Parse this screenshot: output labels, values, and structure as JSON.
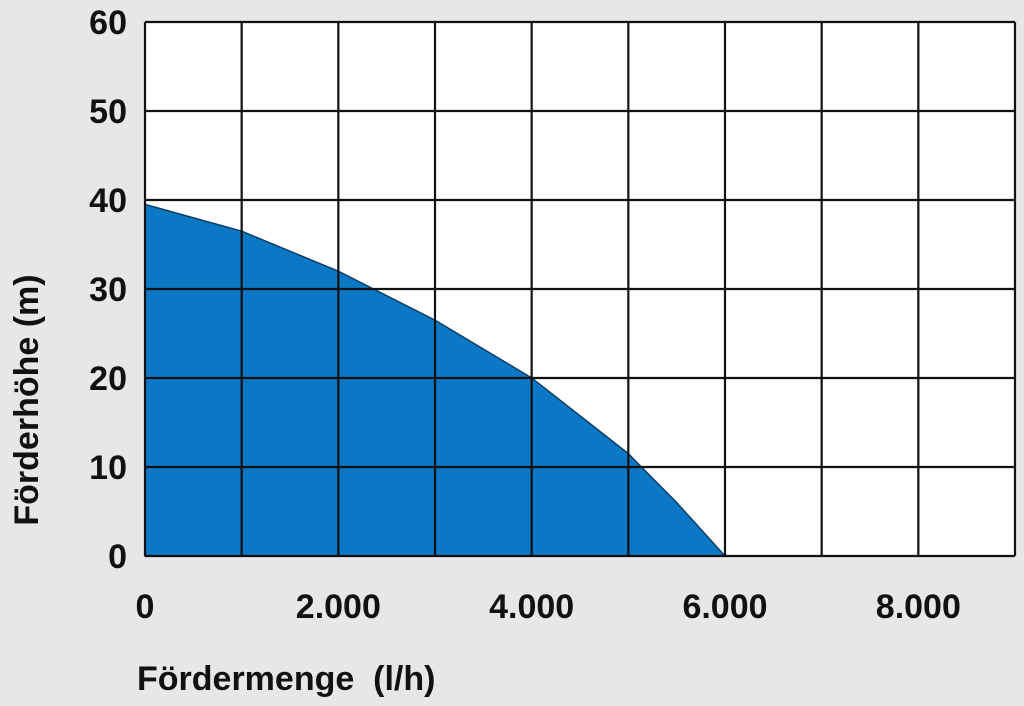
{
  "chart_data": {
    "type": "area",
    "title": "",
    "xlabel": "Fördermenge  (l/h)",
    "ylabel": "Förderhöhe (m)",
    "xlim": [
      0,
      9000
    ],
    "ylim": [
      0,
      60
    ],
    "x_ticks": [
      "0",
      "2.000",
      "4.000",
      "6.000",
      "8.000"
    ],
    "x_tick_values": [
      0,
      2000,
      4000,
      6000,
      8000
    ],
    "y_ticks": [
      "0",
      "10",
      "20",
      "30",
      "40",
      "50",
      "60"
    ],
    "y_tick_values": [
      0,
      10,
      20,
      30,
      40,
      50,
      60
    ],
    "grid": true,
    "fill_color": "#0a78c4",
    "series": [
      {
        "x": [
          0,
          1000,
          2000,
          3000,
          4000,
          5000,
          5500,
          6000
        ],
        "y": [
          39.5,
          36.5,
          32,
          26.5,
          20,
          11.5,
          6,
          0
        ]
      }
    ]
  }
}
